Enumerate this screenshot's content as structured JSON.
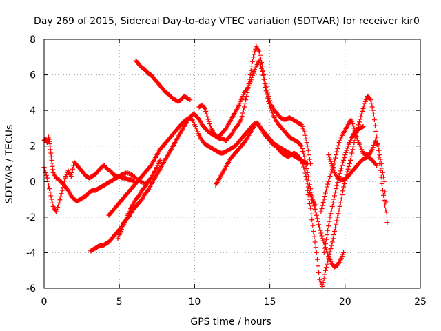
{
  "chart_data": {
    "type": "scatter",
    "title": "Day 269 of 2015, Sidereal Day-to-day VTEC variation (SDTVAR) for receiver kir0",
    "xlabel": "GPS time / hours",
    "ylabel": "SDTVAR / TECUs",
    "xlim": [
      0,
      25
    ],
    "ylim": [
      -6,
      8
    ],
    "xticks": [
      "0",
      "5",
      "10",
      "15",
      "20",
      "25"
    ],
    "yticks": [
      "-6",
      "-4",
      "-2",
      "0",
      "2",
      "4",
      "6",
      "8"
    ],
    "grid": true,
    "marker": "+",
    "color": "#ff0000",
    "series": [
      {
        "x": [
          0.0,
          0.1,
          0.2,
          0.3,
          0.4,
          0.5,
          0.6,
          0.8,
          1.0,
          1.2,
          1.4,
          1.6,
          1.8,
          2.0,
          2.2,
          2.4,
          2.6,
          2.8,
          3.0,
          3.2,
          3.4,
          3.6,
          3.8,
          4.0,
          4.2,
          4.4,
          4.6,
          4.8,
          5.0,
          5.2,
          5.5,
          5.8,
          6.1,
          6.4,
          6.7,
          7.0
        ],
        "y": [
          2.3,
          2.4,
          2.2,
          2.5,
          2.0,
          1.2,
          0.5,
          0.2,
          0.1,
          -0.1,
          -0.3,
          -0.5,
          -0.8,
          -1.0,
          -1.1,
          -1.0,
          -0.9,
          -0.8,
          -0.6,
          -0.5,
          -0.5,
          -0.4,
          -0.3,
          -0.2,
          -0.1,
          0.0,
          0.1,
          0.2,
          0.3,
          0.4,
          0.5,
          0.4,
          0.2,
          0.0,
          -0.1,
          0.0
        ]
      },
      {
        "x": [
          0.0,
          0.2,
          0.4,
          0.6,
          0.8,
          1.0,
          1.2,
          1.4,
          1.6,
          1.8,
          2.0,
          2.2,
          2.4,
          2.6,
          2.8,
          3.0,
          3.2,
          3.4,
          3.6,
          3.8,
          4.0,
          4.2,
          4.4,
          4.6,
          4.8,
          5.0,
          5.2,
          5.4,
          5.6,
          5.8,
          6.0
        ],
        "y": [
          0.8,
          0.2,
          -0.6,
          -1.4,
          -1.7,
          -1.2,
          -0.5,
          0.2,
          0.6,
          0.3,
          1.1,
          0.9,
          0.7,
          0.5,
          0.3,
          0.2,
          0.3,
          0.4,
          0.6,
          0.8,
          0.9,
          0.7,
          0.6,
          0.4,
          0.3,
          0.3,
          0.2,
          0.2,
          0.1,
          0.1,
          0.0
        ]
      },
      {
        "x": [
          6.1,
          6.3,
          6.5,
          6.7,
          6.9,
          7.1,
          7.3,
          7.5,
          7.7,
          7.9,
          8.1,
          8.3,
          8.5,
          8.7,
          8.9,
          9.1,
          9.3,
          9.5,
          9.7
        ],
        "y": [
          6.8,
          6.6,
          6.4,
          6.3,
          6.1,
          6.0,
          5.8,
          5.6,
          5.4,
          5.2,
          5.0,
          4.9,
          4.7,
          4.6,
          4.5,
          4.6,
          4.8,
          4.7,
          4.6
        ]
      },
      {
        "x": [
          3.1,
          3.3,
          3.5,
          3.7,
          3.9,
          4.1,
          4.3,
          4.5,
          4.7,
          4.9,
          5.1,
          5.3,
          5.5,
          5.7,
          5.9,
          6.1,
          6.3,
          6.5,
          6.7,
          6.9,
          7.1,
          7.3,
          7.5,
          7.7,
          7.9,
          8.1,
          8.3,
          8.5,
          8.7,
          8.9,
          9.1,
          9.3,
          9.5,
          9.7,
          9.9,
          10.1,
          10.3,
          10.5,
          10.7,
          10.9,
          11.1,
          11.3,
          11.5,
          11.7,
          11.9,
          12.1,
          12.3,
          12.5,
          12.7,
          12.9,
          13.1,
          13.3,
          13.5,
          13.7,
          13.9,
          14.1,
          14.3,
          14.5,
          14.7,
          14.9,
          15.1,
          15.3,
          15.5,
          15.7,
          15.9,
          16.1,
          16.3,
          16.5,
          16.7,
          16.9,
          17.1,
          17.3,
          17.5,
          17.7
        ],
        "y": [
          -3.9,
          -3.8,
          -3.7,
          -3.6,
          -3.6,
          -3.5,
          -3.4,
          -3.2,
          -3.0,
          -2.8,
          -2.6,
          -2.3,
          -2.1,
          -1.9,
          -1.6,
          -1.4,
          -1.2,
          -1.0,
          -0.7,
          -0.5,
          -0.2,
          0.1,
          0.4,
          0.7,
          1.0,
          1.3,
          1.6,
          1.9,
          2.2,
          2.5,
          2.8,
          3.1,
          3.4,
          3.6,
          3.8,
          3.7,
          3.5,
          3.2,
          3.0,
          2.8,
          2.7,
          2.6,
          2.5,
          2.4,
          2.4,
          2.3,
          2.5,
          2.7,
          3.0,
          3.2,
          3.5,
          4.2,
          5.0,
          6.0,
          7.0,
          7.6,
          7.3,
          6.5,
          5.5,
          4.8,
          4.3,
          4.0,
          3.8,
          3.6,
          3.5,
          3.5,
          3.6,
          3.5,
          3.4,
          3.3,
          3.2,
          2.8,
          2.0,
          1.0
        ]
      },
      {
        "x": [
          4.3,
          4.5,
          4.7,
          4.9,
          5.1,
          5.3,
          5.5,
          5.7,
          5.9,
          6.1,
          6.3,
          6.5,
          6.7,
          6.9,
          7.1,
          7.3,
          7.5,
          7.7,
          7.9,
          8.1,
          8.3,
          8.5,
          8.7,
          8.9,
          9.1,
          9.3,
          9.5,
          9.7,
          9.9,
          10.1,
          10.3,
          10.5,
          10.7,
          10.9,
          11.1,
          11.3,
          11.5,
          11.7,
          11.9,
          12.1,
          12.3,
          12.5,
          12.7,
          12.9,
          13.1,
          13.3,
          13.5,
          13.7,
          13.9,
          14.1,
          14.3,
          14.5,
          14.7,
          14.9,
          15.1,
          15.3,
          15.5,
          15.7,
          15.9,
          16.1,
          16.3,
          16.5,
          16.7,
          16.9,
          17.1,
          17.3,
          17.5
        ],
        "y": [
          -1.9,
          -1.7,
          -1.5,
          -1.3,
          -1.1,
          -0.9,
          -0.7,
          -0.5,
          -0.3,
          -0.1,
          0.1,
          0.3,
          0.5,
          0.7,
          0.9,
          1.2,
          1.5,
          1.8,
          2.0,
          2.2,
          2.4,
          2.6,
          2.8,
          3.0,
          3.2,
          3.4,
          3.5,
          3.6,
          3.4,
          3.0,
          2.6,
          2.3,
          2.1,
          2.0,
          1.9,
          1.8,
          1.7,
          1.6,
          1.6,
          1.7,
          1.8,
          1.9,
          2.0,
          2.2,
          2.4,
          2.6,
          2.8,
          3.0,
          3.2,
          3.3,
          3.1,
          2.9,
          2.7,
          2.5,
          2.3,
          2.1,
          2.0,
          1.9,
          1.8,
          1.7,
          1.6,
          1.5,
          1.4,
          1.3,
          1.2,
          1.1,
          1.0
        ]
      },
      {
        "x": [
          4.9,
          5.1,
          5.3,
          5.5,
          5.7,
          5.9,
          6.1,
          6.3,
          6.5,
          6.7,
          6.9,
          7.1,
          7.3,
          7.5,
          7.7
        ],
        "y": [
          -3.2,
          -2.8,
          -2.4,
          -2.0,
          -1.6,
          -1.3,
          -1.0,
          -0.8,
          -0.5,
          -0.3,
          0.0,
          0.2,
          0.5,
          0.8,
          1.2
        ]
      },
      {
        "x": [
          11.4,
          11.6,
          11.8,
          12.0,
          12.2,
          12.4,
          12.6,
          12.8,
          13.0,
          13.2,
          13.4,
          13.6,
          13.8,
          14.0,
          14.2,
          14.4,
          14.6,
          14.8,
          15.0,
          15.2,
          15.4,
          15.6,
          15.8,
          16.0,
          16.2,
          16.4,
          16.6,
          16.8,
          17.0,
          17.2,
          17.4,
          17.6,
          17.8,
          18.0
        ],
        "y": [
          -0.2,
          0.1,
          0.4,
          0.7,
          1.0,
          1.3,
          1.5,
          1.7,
          1.9,
          2.1,
          2.3,
          2.6,
          2.9,
          3.2,
          3.3,
          3.0,
          2.7,
          2.5,
          2.3,
          2.1,
          2.0,
          1.8,
          1.6,
          1.5,
          1.4,
          1.5,
          1.6,
          1.5,
          1.3,
          1.0,
          0.3,
          -0.5,
          -1.0,
          -1.3
        ]
      },
      {
        "x": [
          10.3,
          10.5,
          10.7,
          10.9,
          11.1,
          11.3,
          11.5,
          11.7,
          11.9,
          12.1,
          12.3,
          12.5,
          12.7,
          12.9,
          13.1,
          13.3,
          13.5,
          13.7,
          13.9,
          14.1,
          14.3,
          14.5,
          14.7,
          14.9,
          15.1,
          15.3,
          15.5,
          15.7,
          15.9,
          16.1,
          16.3,
          16.5,
          16.7,
          16.9,
          17.1,
          17.3,
          17.5,
          17.7,
          17.9,
          18.1,
          18.3,
          18.5,
          18.7,
          18.9,
          19.1,
          19.3,
          19.5,
          19.7,
          19.9
        ],
        "y": [
          4.2,
          4.3,
          4.1,
          3.5,
          3.0,
          2.7,
          2.5,
          2.6,
          2.8,
          3.0,
          3.3,
          3.6,
          3.9,
          4.2,
          4.6,
          5.0,
          5.2,
          5.6,
          6.1,
          6.5,
          6.8,
          6.2,
          5.3,
          4.5,
          4.0,
          3.6,
          3.3,
          3.1,
          2.9,
          2.7,
          2.5,
          2.4,
          2.3,
          2.2,
          2.0,
          1.4,
          0.5,
          -0.4,
          -1.2,
          -1.9,
          -2.6,
          -3.2,
          -3.7,
          -4.2,
          -4.6,
          -4.8,
          -4.7,
          -4.4,
          -4.0
        ]
      },
      {
        "x": [
          17.5,
          17.7,
          17.9,
          18.1,
          18.3,
          18.5,
          18.7,
          18.9,
          19.1,
          19.3,
          19.5,
          19.7,
          19.9,
          20.1,
          20.3,
          20.5,
          20.7,
          20.9,
          21.1,
          21.3,
          21.5,
          21.7,
          21.9,
          22.1,
          22.3,
          22.5,
          22.7
        ],
        "y": [
          -0.5,
          -1.5,
          -2.8,
          -4.0,
          -5.5,
          -5.9,
          -5.0,
          -4.3,
          -3.6,
          -2.8,
          -2.0,
          -1.2,
          -0.3,
          0.4,
          1.0,
          1.8,
          2.6,
          3.2,
          3.8,
          4.4,
          4.8,
          4.6,
          3.8,
          2.5,
          1.0,
          -0.5,
          -1.6
        ]
      },
      {
        "x": [
          18.4,
          18.6,
          18.8,
          19.0,
          19.2,
          19.4,
          19.6,
          19.8,
          20.0,
          20.2,
          20.4,
          20.6,
          20.8,
          21.0,
          21.2,
          21.4,
          21.6,
          21.8,
          22.0,
          22.2,
          22.4,
          22.6,
          22.8
        ],
        "y": [
          -1.7,
          -1.0,
          -0.3,
          0.3,
          0.8,
          1.5,
          2.2,
          2.6,
          2.9,
          3.2,
          3.5,
          3.0,
          2.4,
          2.0,
          1.6,
          1.5,
          1.5,
          1.8,
          2.3,
          2.0,
          1.0,
          0.0,
          -2.3
        ]
      },
      {
        "x": [
          18.9,
          19.1,
          19.3,
          19.5,
          19.7,
          19.9,
          20.1,
          20.3,
          20.5,
          20.7,
          20.9,
          21.1,
          21.3,
          21.5,
          21.7,
          21.9,
          22.1
        ],
        "y": [
          1.5,
          1.0,
          0.5,
          0.2,
          0.1,
          0.1,
          0.2,
          0.4,
          0.6,
          0.8,
          1.0,
          1.2,
          1.3,
          1.4,
          1.3,
          1.1,
          0.9
        ]
      },
      {
        "x": [
          18.6,
          18.8,
          19.0,
          19.2,
          19.4,
          19.6,
          19.8,
          20.0,
          20.2,
          20.4,
          20.6,
          20.8,
          21.0,
          21.2
        ],
        "y": [
          -4.0,
          -3.0,
          -2.0,
          -1.2,
          -0.4,
          0.3,
          0.9,
          1.5,
          2.0,
          2.4,
          2.7,
          2.9,
          3.0,
          3.1
        ]
      }
    ]
  }
}
